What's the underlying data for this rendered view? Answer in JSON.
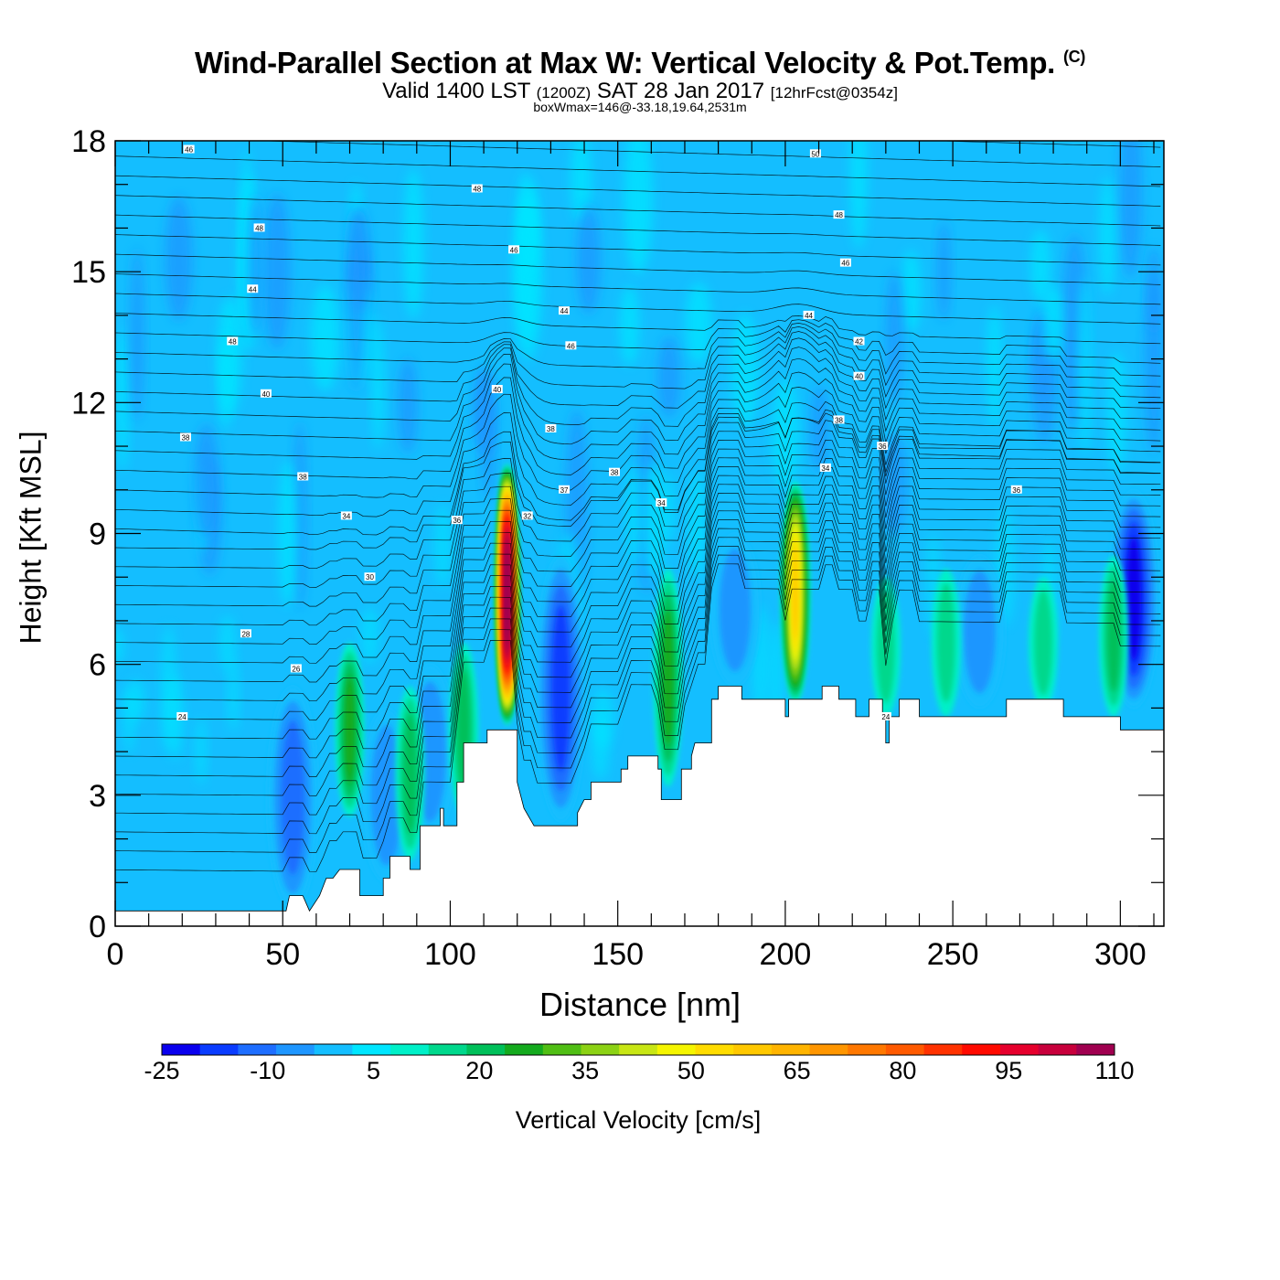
{
  "header": {
    "title": "Wind-Parallel Section at Max W: Vertical Velocity & Pot.Temp.",
    "copyright": "(C)",
    "valid_prefix": "Valid 1400 LST",
    "valid_utc": "(1200Z)",
    "valid_date": "SAT 28 Jan 2017",
    "forecast": "[12hrFcst@0354z]",
    "box_info": "boxWmax=146@-33.18,19.64,2531m"
  },
  "chart_data": {
    "type": "heatmap",
    "xlabel": "Distance [nm]",
    "ylabel": "Height [Kft MSL]",
    "xlim": [
      0,
      313
    ],
    "ylim": [
      0,
      18
    ],
    "x_ticks": [
      0,
      50,
      100,
      150,
      200,
      250,
      300
    ],
    "y_ticks": [
      0,
      3,
      6,
      9,
      12,
      15,
      18
    ],
    "colorbar": {
      "label": "Vertical Velocity [cm/s]",
      "levels": [
        -25,
        -20,
        -15,
        -10,
        -5,
        0,
        5,
        10,
        15,
        20,
        25,
        30,
        35,
        40,
        45,
        50,
        55,
        60,
        65,
        70,
        75,
        80,
        85,
        90,
        95,
        100,
        105,
        110
      ],
      "tick_labels": [
        "-25",
        "-10",
        "5",
        "20",
        "35",
        "50",
        "65",
        "80",
        "95",
        "110"
      ],
      "colors": [
        "#0a00ee",
        "#0a3cff",
        "#1e6eff",
        "#1e96ff",
        "#14beff",
        "#00e6ff",
        "#00f0c8",
        "#00d88c",
        "#00c05a",
        "#14aa1e",
        "#50be14",
        "#8cd214",
        "#c8e614",
        "#f5f500",
        "#ffdc00",
        "#ffc800",
        "#ffb400",
        "#ff9600",
        "#ff7800",
        "#ff5a00",
        "#ff3200",
        "#ff0a00",
        "#e6002d",
        "#c8003c",
        "#a00050"
      ]
    },
    "updrafts": [
      {
        "x": 117,
        "z_min": 4.6,
        "z_max": 10.6,
        "w_max": 110
      },
      {
        "x": 203,
        "z_min": 5.1,
        "z_max": 10.2,
        "w_max": 50
      },
      {
        "x": 70,
        "z_min": 2.5,
        "z_max": 6.5,
        "w_max": 22
      },
      {
        "x": 165,
        "z_min": 3.2,
        "z_max": 8.2,
        "w_max": 22
      },
      {
        "x": 104,
        "z_min": 2.5,
        "z_max": 6.5,
        "w_max": 18
      },
      {
        "x": 88,
        "z_min": 1.5,
        "z_max": 5.5,
        "w_max": 18
      },
      {
        "x": 248,
        "z_min": 4.8,
        "z_max": 8.2,
        "w_max": 12
      },
      {
        "x": 277,
        "z_min": 5.0,
        "z_max": 8.0,
        "w_max": 12
      },
      {
        "x": 298,
        "z_min": 4.8,
        "z_max": 8.5,
        "w_max": 15
      },
      {
        "x": 230,
        "z_min": 4.8,
        "z_max": 8.0,
        "w_max": 12
      }
    ],
    "downdrafts": [
      {
        "x": 53,
        "z_min": 0.4,
        "z_max": 5.5,
        "w_min": -15
      },
      {
        "x": 133,
        "z_min": 2.4,
        "z_max": 8.5,
        "w_min": -20
      },
      {
        "x": 304,
        "z_min": 5.0,
        "z_max": 10.0,
        "w_min": -25
      },
      {
        "x": 81,
        "z_min": 1.0,
        "z_max": 5.0,
        "w_min": -10
      },
      {
        "x": 94,
        "z_min": 2.0,
        "z_max": 6.0,
        "w_min": -10
      },
      {
        "x": 185,
        "z_min": 5.5,
        "z_max": 9.0,
        "w_min": -10
      },
      {
        "x": 258,
        "z_min": 5.0,
        "z_max": 8.5,
        "w_min": -10
      }
    ],
    "terrain": [
      [
        0,
        0.35
      ],
      [
        10,
        0.35
      ],
      [
        20,
        0.35
      ],
      [
        30,
        0.35
      ],
      [
        40,
        0.35
      ],
      [
        49,
        0.35
      ],
      [
        51,
        0.35
      ],
      [
        52,
        0.7
      ],
      [
        56,
        0.7
      ],
      [
        58,
        0.35
      ],
      [
        61,
        0.7
      ],
      [
        63,
        1.1
      ],
      [
        65,
        1.1
      ],
      [
        67,
        1.3
      ],
      [
        73,
        1.3
      ],
      [
        73,
        0.7
      ],
      [
        80,
        0.7
      ],
      [
        80,
        1.1
      ],
      [
        82,
        1.1
      ],
      [
        82,
        1.6
      ],
      [
        88,
        1.6
      ],
      [
        88,
        1.3
      ],
      [
        91,
        1.3
      ],
      [
        91,
        2.3
      ],
      [
        97,
        2.3
      ],
      [
        97,
        2.7
      ],
      [
        98,
        2.7
      ],
      [
        98,
        2.3
      ],
      [
        102,
        2.3
      ],
      [
        102,
        3.3
      ],
      [
        104,
        3.3
      ],
      [
        104,
        4.2
      ],
      [
        111,
        4.2
      ],
      [
        111,
        4.5
      ],
      [
        120,
        4.5
      ],
      [
        120,
        3.3
      ],
      [
        122,
        2.7
      ],
      [
        125,
        2.3
      ],
      [
        129,
        2.3
      ],
      [
        138,
        2.3
      ],
      [
        138,
        2.6
      ],
      [
        140,
        2.9
      ],
      [
        142,
        2.9
      ],
      [
        142,
        3.3
      ],
      [
        151,
        3.3
      ],
      [
        151,
        3.6
      ],
      [
        153,
        3.6
      ],
      [
        153,
        3.9
      ],
      [
        162,
        3.9
      ],
      [
        162,
        3.6
      ],
      [
        163,
        3.6
      ],
      [
        163,
        2.9
      ],
      [
        169,
        2.9
      ],
      [
        169,
        3.6
      ],
      [
        172,
        3.6
      ],
      [
        172,
        3.9
      ],
      [
        173,
        4.2
      ],
      [
        178,
        4.2
      ],
      [
        178,
        5.2
      ],
      [
        180,
        5.2
      ],
      [
        180,
        5.5
      ],
      [
        187,
        5.5
      ],
      [
        187,
        5.2
      ],
      [
        192,
        5.2
      ],
      [
        200,
        5.2
      ],
      [
        200,
        4.8
      ],
      [
        201,
        4.8
      ],
      [
        201,
        5.2
      ],
      [
        211,
        5.2
      ],
      [
        211,
        5.5
      ],
      [
        216,
        5.5
      ],
      [
        216,
        5.2
      ],
      [
        221,
        5.2
      ],
      [
        221,
        4.8
      ],
      [
        225,
        4.8
      ],
      [
        225,
        5.2
      ],
      [
        229,
        5.2
      ],
      [
        229,
        4.8
      ],
      [
        230,
        4.8
      ],
      [
        230,
        4.2
      ],
      [
        231,
        4.2
      ],
      [
        231,
        4.8
      ],
      [
        234,
        4.8
      ],
      [
        234,
        5.2
      ],
      [
        240,
        5.2
      ],
      [
        240,
        4.8
      ],
      [
        250,
        4.8
      ],
      [
        266,
        4.8
      ],
      [
        266,
        5.2
      ],
      [
        273,
        5.2
      ],
      [
        283,
        5.2
      ],
      [
        283,
        4.8
      ],
      [
        290,
        4.8
      ],
      [
        300,
        4.8
      ],
      [
        300,
        4.5
      ],
      [
        313,
        4.5
      ]
    ],
    "theta_labels": [
      {
        "x": 22,
        "z": 17.8,
        "text": "46"
      },
      {
        "x": 108,
        "z": 16.9,
        "text": "48"
      },
      {
        "x": 43,
        "z": 16.0,
        "text": "48"
      },
      {
        "x": 119,
        "z": 15.5,
        "text": "46"
      },
      {
        "x": 41,
        "z": 14.6,
        "text": "44"
      },
      {
        "x": 134,
        "z": 14.1,
        "text": "44"
      },
      {
        "x": 35,
        "z": 13.4,
        "text": "48"
      },
      {
        "x": 136,
        "z": 13.3,
        "text": "46"
      },
      {
        "x": 45,
        "z": 12.2,
        "text": "40"
      },
      {
        "x": 114,
        "z": 12.3,
        "text": "40"
      },
      {
        "x": 21,
        "z": 11.2,
        "text": "38"
      },
      {
        "x": 130,
        "z": 11.4,
        "text": "38"
      },
      {
        "x": 56,
        "z": 10.3,
        "text": "38"
      },
      {
        "x": 149,
        "z": 10.4,
        "text": "38"
      },
      {
        "x": 134,
        "z": 10.0,
        "text": "37"
      },
      {
        "x": 69,
        "z": 9.4,
        "text": "34"
      },
      {
        "x": 102,
        "z": 9.3,
        "text": "36"
      },
      {
        "x": 123,
        "z": 9.4,
        "text": "32"
      },
      {
        "x": 163,
        "z": 9.7,
        "text": "34"
      },
      {
        "x": 76,
        "z": 8.0,
        "text": "30"
      },
      {
        "x": 39,
        "z": 6.7,
        "text": "28"
      },
      {
        "x": 54,
        "z": 5.9,
        "text": "26"
      },
      {
        "x": 20,
        "z": 4.8,
        "text": "24"
      },
      {
        "x": 209,
        "z": 17.7,
        "text": "50"
      },
      {
        "x": 216,
        "z": 16.3,
        "text": "48"
      },
      {
        "x": 218,
        "z": 15.2,
        "text": "46"
      },
      {
        "x": 207,
        "z": 14.0,
        "text": "44"
      },
      {
        "x": 222,
        "z": 13.4,
        "text": "42"
      },
      {
        "x": 222,
        "z": 12.6,
        "text": "40"
      },
      {
        "x": 216,
        "z": 11.6,
        "text": "38"
      },
      {
        "x": 229,
        "z": 11.0,
        "text": "36"
      },
      {
        "x": 212,
        "z": 10.5,
        "text": "34"
      },
      {
        "x": 269,
        "z": 10.0,
        "text": "36"
      },
      {
        "x": 230,
        "z": 4.8,
        "text": "24"
      }
    ]
  }
}
